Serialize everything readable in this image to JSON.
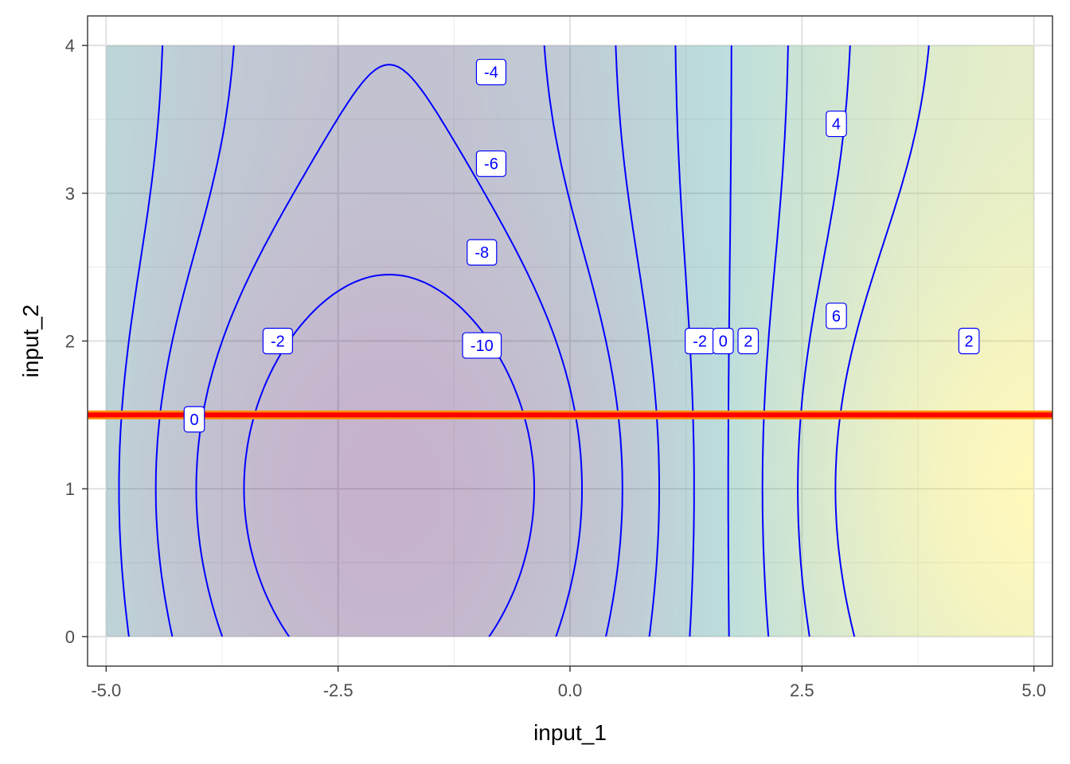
{
  "chart_data": {
    "type": "contour",
    "xlabel": "input_1",
    "ylabel": "input_2",
    "xlim": [
      -5.2,
      5.2
    ],
    "ylim": [
      -0.2,
      4.2
    ],
    "data_extent": {
      "x": [
        -5,
        5
      ],
      "y": [
        0,
        4
      ]
    },
    "x_ticks": [
      {
        "value": -5,
        "label": "-5.0"
      },
      {
        "value": -2.5,
        "label": "-2.5"
      },
      {
        "value": 0,
        "label": "0.0"
      },
      {
        "value": 2.5,
        "label": "2.5"
      },
      {
        "value": 5,
        "label": "5.0"
      }
    ],
    "y_ticks": [
      {
        "value": 0,
        "label": "0"
      },
      {
        "value": 1,
        "label": "1"
      },
      {
        "value": 2,
        "label": "2"
      },
      {
        "value": 3,
        "label": "3"
      },
      {
        "value": 4,
        "label": "4"
      }
    ],
    "grid": true,
    "fill_colormap": [
      "#440154",
      "#21908c",
      "#fde725"
    ],
    "contour_color": "#0000ff",
    "contour_levels": [
      -10,
      -8,
      -6,
      -4,
      -2,
      0,
      2,
      4,
      6
    ],
    "contour_labels": [
      {
        "text": "-4",
        "x": -0.85,
        "y": 3.82
      },
      {
        "text": "-6",
        "x": -0.85,
        "y": 3.2
      },
      {
        "text": "-8",
        "x": -0.95,
        "y": 2.6
      },
      {
        "text": "-10",
        "x": -0.95,
        "y": 1.97
      },
      {
        "text": "-2",
        "x": -3.15,
        "y": 2.0
      },
      {
        "text": "0",
        "x": -4.05,
        "y": 1.47
      },
      {
        "text": "-2",
        "x": 1.4,
        "y": 2.0
      },
      {
        "text": "0",
        "x": 1.65,
        "y": 2.0
      },
      {
        "text": "2",
        "x": 1.92,
        "y": 2.0
      },
      {
        "text": "4",
        "x": 2.87,
        "y": 3.47
      },
      {
        "text": "6",
        "x": 2.87,
        "y": 2.17
      },
      {
        "text": "2",
        "x": 4.3,
        "y": 2.0
      }
    ],
    "horizontal_line": {
      "y": 1.5,
      "color": "#ff0000",
      "outline_color": "#ff8c00"
    }
  }
}
